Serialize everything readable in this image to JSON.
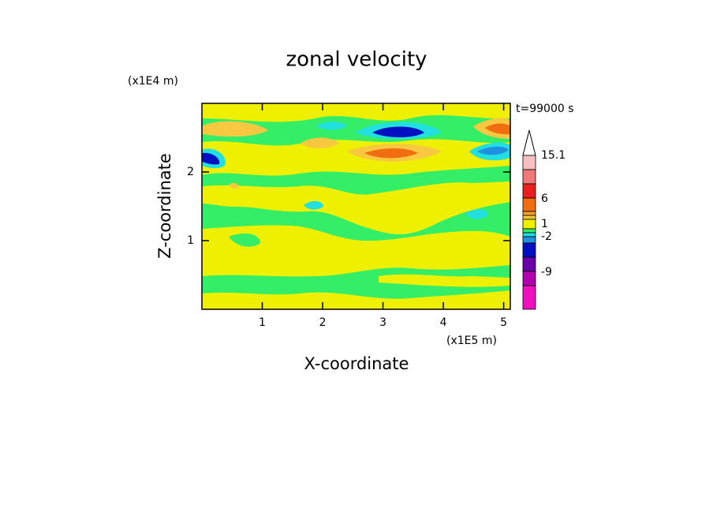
{
  "chart_data": {
    "type": "contour",
    "title": "zonal velocity",
    "xlabel": "X-coordinate",
    "ylabel": "Z-coordinate",
    "x_unit": "(x1E5 m)",
    "y_unit": "(x1E4 m)",
    "time_label": "t=99000 s",
    "xlim": [
      0,
      5.11
    ],
    "ylim": [
      0,
      3
    ],
    "xticks": [
      1,
      2,
      3,
      4,
      5
    ],
    "yticks": [
      1,
      2
    ],
    "colorbar_ticks": [
      15.1,
      6,
      1,
      -2,
      -9
    ],
    "colorbar_colors": [
      "#f7c0c0",
      "#f07878",
      "#e82020",
      "#f06e10",
      "#f5a030",
      "#f8c840",
      "#eef000",
      "#33ee66",
      "#22e0e0",
      "#2090e0",
      "#0010c0",
      "#6a00a8",
      "#b000b0",
      "#f010c0"
    ]
  }
}
